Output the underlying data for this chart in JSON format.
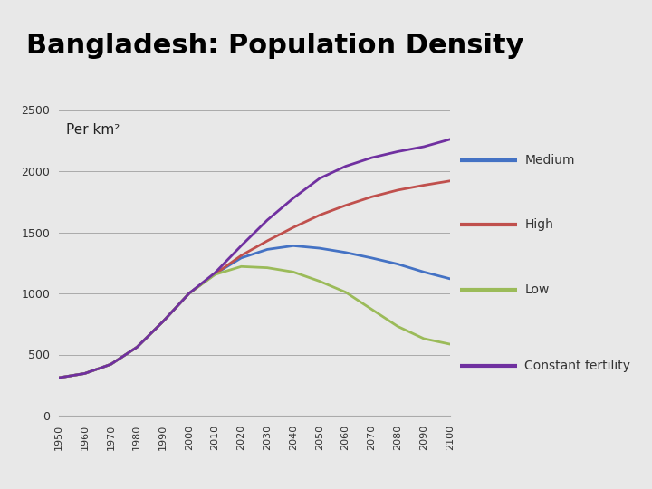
{
  "title": "Bangladesh: Population Density",
  "title_bg_color": "#3a7f96",
  "title_fontsize": 22,
  "title_color": "#000000",
  "ylabel": "Per km²",
  "ylabel_fontsize": 11,
  "bg_color": "#e8e8e8",
  "plot_bg_color": "#e8e8e8",
  "years": [
    1950,
    1960,
    1970,
    1980,
    1990,
    2000,
    2010,
    2020,
    2030,
    2040,
    2050,
    2060,
    2070,
    2080,
    2090,
    2100
  ],
  "medium": [
    310,
    345,
    420,
    560,
    770,
    1000,
    1160,
    1290,
    1360,
    1390,
    1370,
    1335,
    1290,
    1240,
    1175,
    1120
  ],
  "high": [
    310,
    345,
    420,
    560,
    770,
    1000,
    1160,
    1310,
    1430,
    1540,
    1640,
    1720,
    1790,
    1845,
    1885,
    1920
  ],
  "low": [
    310,
    345,
    420,
    560,
    770,
    1000,
    1155,
    1220,
    1210,
    1175,
    1100,
    1010,
    870,
    730,
    630,
    585
  ],
  "const": [
    310,
    345,
    420,
    560,
    770,
    1000,
    1170,
    1390,
    1600,
    1780,
    1940,
    2040,
    2110,
    2160,
    2200,
    2260
  ],
  "colors": {
    "medium": "#4472c4",
    "high": "#c0504d",
    "low": "#9bbb59",
    "const": "#7030a0"
  },
  "legend_labels": [
    "Medium",
    "High",
    "Low",
    "Constant fertility"
  ],
  "ylim": [
    0,
    2600
  ],
  "yticks": [
    0,
    500,
    1000,
    1500,
    2000,
    2500
  ],
  "grid_color": "#aaaaaa",
  "line_width": 2.0
}
